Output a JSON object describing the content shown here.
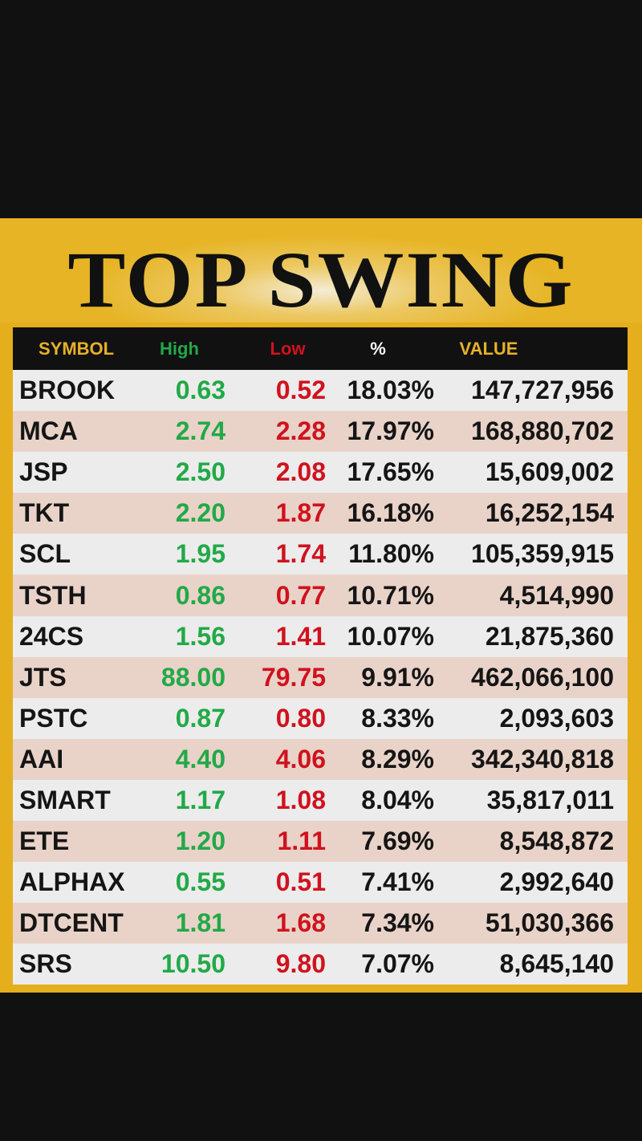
{
  "title": "TOP SWING",
  "colors": {
    "background": "#111111",
    "gold": "#e6b020",
    "header_bg": "#111111",
    "header_gold_text": "#e6b12a",
    "high_green": "#22a948",
    "low_red": "#d0121e",
    "row_light": "#ececec",
    "row_pink": "#e9d3c8"
  },
  "table": {
    "headers": {
      "symbol": "SYMBOL",
      "high": "High",
      "low": "Low",
      "pct": "%",
      "value": "VALUE"
    },
    "rows": [
      {
        "symbol": "BROOK",
        "high": "0.63",
        "low": "0.52",
        "pct": "18.03%",
        "value": "147,727,956"
      },
      {
        "symbol": "MCA",
        "high": "2.74",
        "low": "2.28",
        "pct": "17.97%",
        "value": "168,880,702"
      },
      {
        "symbol": "JSP",
        "high": "2.50",
        "low": "2.08",
        "pct": "17.65%",
        "value": "15,609,002"
      },
      {
        "symbol": "TKT",
        "high": "2.20",
        "low": "1.87",
        "pct": "16.18%",
        "value": "16,252,154"
      },
      {
        "symbol": "SCL",
        "high": "1.95",
        "low": "1.74",
        "pct": "11.80%",
        "value": "105,359,915"
      },
      {
        "symbol": "TSTH",
        "high": "0.86",
        "low": "0.77",
        "pct": "10.71%",
        "value": "4,514,990"
      },
      {
        "symbol": "24CS",
        "high": "1.56",
        "low": "1.41",
        "pct": "10.07%",
        "value": "21,875,360"
      },
      {
        "symbol": "JTS",
        "high": "88.00",
        "low": "79.75",
        "pct": "9.91%",
        "value": "462,066,100"
      },
      {
        "symbol": "PSTC",
        "high": "0.87",
        "low": "0.80",
        "pct": "8.33%",
        "value": "2,093,603"
      },
      {
        "symbol": "AAI",
        "high": "4.40",
        "low": "4.06",
        "pct": "8.29%",
        "value": "342,340,818"
      },
      {
        "symbol": "SMART",
        "high": "1.17",
        "low": "1.08",
        "pct": "8.04%",
        "value": "35,817,011"
      },
      {
        "symbol": "ETE",
        "high": "1.20",
        "low": "1.11",
        "pct": "7.69%",
        "value": "8,548,872"
      },
      {
        "symbol": "ALPHAX",
        "high": "0.55",
        "low": "0.51",
        "pct": "7.41%",
        "value": "2,992,640"
      },
      {
        "symbol": "DTCENT",
        "high": "1.81",
        "low": "1.68",
        "pct": "7.34%",
        "value": "51,030,366"
      },
      {
        "symbol": "SRS",
        "high": "10.50",
        "low": "9.80",
        "pct": "7.07%",
        "value": "8,645,140"
      }
    ]
  }
}
